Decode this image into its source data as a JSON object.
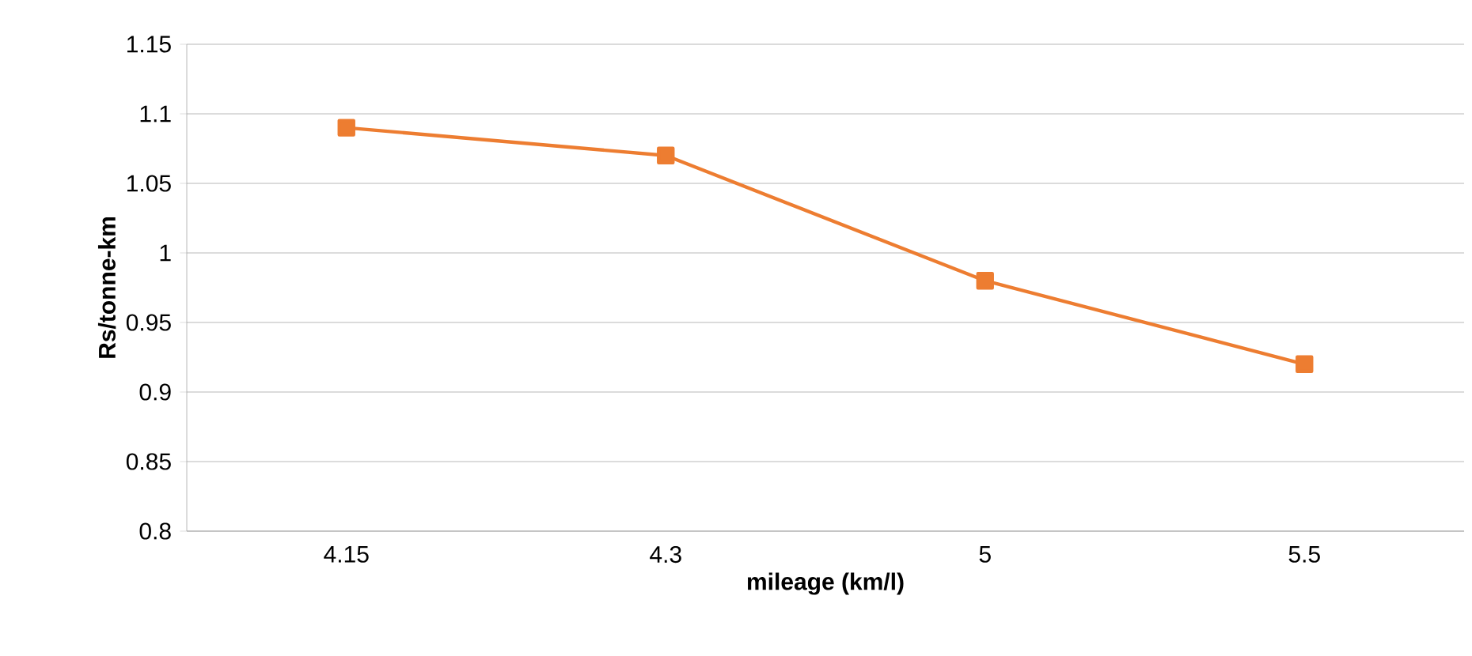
{
  "chart_data": {
    "type": "line",
    "xlabel": "mileage (km/l)",
    "ylabel": "Rs/tonne-km",
    "categories": [
      "4.15",
      "4.3",
      "5",
      "5.5"
    ],
    "series": [
      {
        "color": "#ed7d31",
        "values": [
          1.09,
          1.07,
          0.98,
          0.92
        ]
      }
    ],
    "ylim": [
      0.8,
      1.15
    ],
    "yticks": [
      0.8,
      0.85,
      0.9,
      0.95,
      1,
      1.05,
      1.1,
      1.15
    ],
    "grid": "y",
    "marker": "square"
  }
}
